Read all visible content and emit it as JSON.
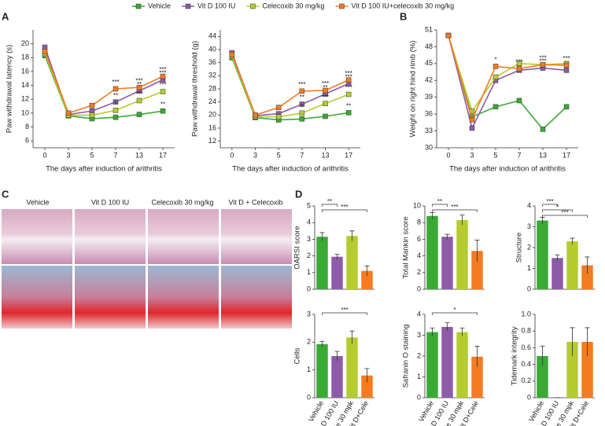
{
  "panel_labels": [
    "A",
    "B",
    "C",
    "D"
  ],
  "histology": {
    "labels": [
      "Vehicle",
      "Vit D 100 IU",
      "Celecoxib 30 mg/kg",
      "Vit D + Celecoxib"
    ]
  },
  "chart_data": [
    {
      "type": "line",
      "ylabel": "Paw withdrawal latency (s)",
      "xlabel": "The days after induction of arithritis",
      "categories": [
        "0",
        "3",
        "5",
        "7",
        "13",
        "17"
      ],
      "ylim": [
        5,
        22
      ],
      "yticks": [
        6,
        8,
        10,
        12,
        14,
        16,
        18,
        20
      ],
      "series": [
        {
          "name": "Vehicle",
          "color": "#3aaa35",
          "values": [
            18.3,
            9.6,
            9.2,
            9.4,
            9.8,
            10.3
          ],
          "annotations": [
            null,
            null,
            null,
            null,
            null,
            "**"
          ]
        },
        {
          "name": "Vit D 100 IU",
          "color": "#8e5ba8",
          "values": [
            19.5,
            9.8,
            10.3,
            11.6,
            13.2,
            14.8
          ],
          "annotations": [
            null,
            null,
            null,
            "**",
            "**",
            "***"
          ]
        },
        {
          "name": "Celecoxib 30 mg/kg",
          "color": "#b5cc2e",
          "values": [
            18.6,
            9.7,
            9.7,
            10.4,
            11.8,
            13.1
          ],
          "annotations": [
            null,
            null,
            null,
            "*",
            "***",
            "***"
          ]
        },
        {
          "name": "Vit D 100 IU+celecoxib  30 mg/kg",
          "color": "#f47b20",
          "values": [
            18.9,
            10.0,
            11.1,
            13.5,
            13.7,
            15.3
          ],
          "annotations": [
            null,
            null,
            null,
            "***",
            "***",
            "***"
          ]
        }
      ]
    },
    {
      "type": "line",
      "ylabel": "Paw withdrawal threshold (g)",
      "xlabel": "The days after induction of arithritis",
      "categories": [
        "0",
        "3",
        "5",
        "7",
        "13",
        "17"
      ],
      "ylim": [
        10,
        46
      ],
      "yticks": [
        12,
        16,
        20,
        24,
        28,
        32,
        36,
        40,
        44
      ],
      "series": [
        {
          "color": "#3aaa35",
          "values": [
            37.5,
            19.2,
            18.5,
            18.8,
            19.6,
            20.7
          ],
          "annotations": [
            null,
            null,
            null,
            null,
            null,
            "**"
          ]
        },
        {
          "color": "#8e5ba8",
          "values": [
            39.0,
            19.8,
            20.4,
            23.3,
            26.4,
            29.6
          ],
          "annotations": [
            null,
            null,
            null,
            "**",
            "**",
            "***"
          ]
        },
        {
          "color": "#b5cc2e",
          "values": [
            38.0,
            19.5,
            19.4,
            20.6,
            23.5,
            26.3
          ],
          "annotations": [
            null,
            null,
            null,
            "*",
            "***",
            "***"
          ]
        },
        {
          "color": "#f47b20",
          "values": [
            38.5,
            20.0,
            22.3,
            27.3,
            27.5,
            30.7
          ],
          "annotations": [
            null,
            null,
            null,
            "***",
            "***",
            "***"
          ]
        }
      ]
    },
    {
      "type": "line",
      "ylabel": "Weight on right hind rimb (%)",
      "xlabel": "The days after induction of arithritis",
      "categories": [
        "0",
        "3",
        "5",
        "7",
        "13",
        "17"
      ],
      "ylim": [
        30,
        51
      ],
      "yticks": [
        30,
        33,
        36,
        39,
        42,
        45,
        48,
        51
      ],
      "series": [
        {
          "color": "#3aaa35",
          "values": [
            50.0,
            35.5,
            37.3,
            38.4,
            33.3,
            37.3
          ],
          "annotations": [
            null,
            null,
            null,
            null,
            null,
            null
          ]
        },
        {
          "color": "#8e5ba8",
          "values": [
            50.0,
            33.5,
            42.0,
            43.8,
            44.2,
            43.8
          ],
          "annotations": [
            null,
            null,
            null,
            "**",
            "***",
            "**"
          ]
        },
        {
          "color": "#b5cc2e",
          "values": [
            50.0,
            36.5,
            42.6,
            45.0,
            44.8,
            45.0
          ],
          "annotations": [
            null,
            null,
            null,
            null,
            null,
            null
          ]
        },
        {
          "color": "#f47b20",
          "values": [
            50.0,
            35.0,
            44.5,
            44.1,
            44.8,
            44.7
          ],
          "annotations": [
            null,
            null,
            "*",
            "***",
            "***",
            "***"
          ]
        }
      ]
    },
    {
      "type": "bar",
      "ylabel": "OARSI score",
      "ylim": [
        0,
        5
      ],
      "yticks": [
        0,
        1,
        2,
        3,
        4,
        5
      ],
      "values": [
        3.15,
        1.95,
        3.2,
        1.1
      ],
      "errors": [
        0.25,
        0.15,
        0.3,
        0.3
      ],
      "colors": [
        "#3aaa35",
        "#8e5ba8",
        "#b5cc2e",
        "#f47b20"
      ],
      "brackets": [
        {
          "from": 0,
          "to": 1,
          "label": "**"
        },
        {
          "from": 0,
          "to": 3,
          "label": "***"
        }
      ]
    },
    {
      "type": "bar",
      "ylabel": "Total Mankin score",
      "ylim": [
        0,
        10
      ],
      "yticks": [
        0,
        2,
        4,
        6,
        8,
        10
      ],
      "values": [
        8.8,
        6.3,
        8.3,
        4.6
      ],
      "errors": [
        0.4,
        0.3,
        0.6,
        1.3
      ],
      "colors": [
        "#3aaa35",
        "#8e5ba8",
        "#b5cc2e",
        "#f47b20"
      ],
      "brackets": [
        {
          "from": 0,
          "to": 1,
          "label": "**"
        },
        {
          "from": 0,
          "to": 3,
          "label": "***"
        }
      ]
    },
    {
      "type": "bar",
      "ylabel": "Structure",
      "ylim": [
        0,
        4
      ],
      "yticks": [
        0,
        1,
        2,
        3,
        4
      ],
      "values": [
        3.3,
        1.5,
        2.3,
        1.15
      ],
      "errors": [
        0.15,
        0.15,
        0.15,
        0.4
      ],
      "colors": [
        "#3aaa35",
        "#8e5ba8",
        "#b5cc2e",
        "#f47b20"
      ],
      "brackets": [
        {
          "from": 0,
          "to": 1,
          "label": "***"
        },
        {
          "from": 0,
          "to": 2,
          "label": "*"
        },
        {
          "from": 0,
          "to": 3,
          "label": "***"
        }
      ]
    },
    {
      "type": "bar",
      "ylabel": "Cells",
      "ylim": [
        0,
        3
      ],
      "yticks": [
        0,
        1,
        2,
        3
      ],
      "categories": [
        "Vehicle",
        "Vit D 100 IU",
        "Cele 30 mpk",
        "Vit D+Cele"
      ],
      "values": [
        1.93,
        1.5,
        2.17,
        0.8
      ],
      "errors": [
        0.1,
        0.17,
        0.23,
        0.25
      ],
      "colors": [
        "#3aaa35",
        "#8e5ba8",
        "#b5cc2e",
        "#f47b20"
      ],
      "brackets": [
        {
          "from": 0,
          "to": 3,
          "label": "***"
        }
      ]
    },
    {
      "type": "bar",
      "ylabel": "Safranin O staining",
      "ylim": [
        0,
        4
      ],
      "yticks": [
        0,
        1,
        2,
        3,
        4
      ],
      "categories": [
        "Vehicle",
        "Vit D 100 IU",
        "Cele 30 mpk",
        "Vit D+Cele"
      ],
      "values": [
        3.15,
        3.4,
        3.15,
        1.97
      ],
      "errors": [
        0.2,
        0.2,
        0.2,
        0.5
      ],
      "colors": [
        "#3aaa35",
        "#8e5ba8",
        "#b5cc2e",
        "#f47b20"
      ],
      "brackets": [
        {
          "from": 0,
          "to": 3,
          "label": "*"
        }
      ]
    },
    {
      "type": "bar",
      "ylabel": "Tidemark integrity",
      "ylim": [
        0,
        1
      ],
      "yticks": [
        0,
        0.2,
        0.4,
        0.6,
        0.8,
        {
          "value": 1,
          "label": "1.0"
        }
      ],
      "categories": [
        "Vehicle",
        "Vit D 100 IU",
        "Cele 30 mpk",
        "Vit D+Cele"
      ],
      "values": [
        0.5,
        0,
        0.67,
        0.67
      ],
      "errors": [
        0.12,
        0,
        0.17,
        0.17
      ],
      "colors": [
        "#3aaa35",
        "#8e5ba8",
        "#b5cc2e",
        "#f47b20"
      ],
      "brackets": []
    }
  ]
}
